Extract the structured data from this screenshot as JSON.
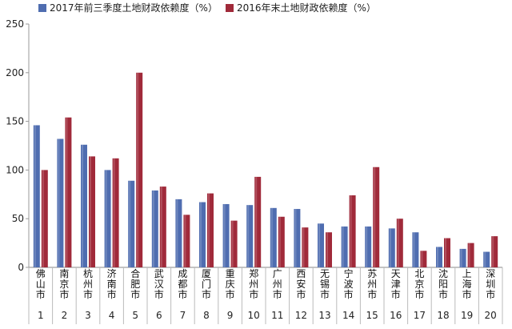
{
  "chart_data": {
    "type": "bar",
    "title": "",
    "xlabel": "",
    "ylabel": "",
    "ylim": [
      0,
      250
    ],
    "yticks": [
      0,
      50,
      100,
      150,
      200,
      250
    ],
    "grid": false,
    "legend_position": "top-left",
    "categories": [
      "佛山市",
      "南京市",
      "杭州市",
      "济南市",
      "合肥市",
      "武汉市",
      "成都市",
      "厦门市",
      "重庆市",
      "郑州市",
      "广州市",
      "西安市",
      "无锡市",
      "宁波市",
      "苏州市",
      "天津市",
      "北京市",
      "沈阳市",
      "上海市",
      "深圳市"
    ],
    "indices": [
      "1",
      "2",
      "3",
      "4",
      "5",
      "6",
      "7",
      "8",
      "9",
      "10",
      "11",
      "12",
      "13",
      "14",
      "15",
      "16",
      "17",
      "18",
      "19",
      "20"
    ],
    "series": [
      {
        "name": "2017年前三季度土地财政依赖度（%）",
        "color": "#4f6db0",
        "values": [
          146,
          132,
          126,
          100,
          89,
          79,
          70,
          67,
          65,
          64,
          61,
          60,
          45,
          42,
          42,
          40,
          36,
          21,
          19,
          16
        ]
      },
      {
        "name": "2016年末土地财政依赖度（%）",
        "color": "#a02a3a",
        "values": [
          100,
          154,
          114,
          112,
          200,
          83,
          54,
          76,
          48,
          93,
          52,
          41,
          36,
          74,
          103,
          50,
          17,
          30,
          25,
          32
        ]
      }
    ]
  }
}
